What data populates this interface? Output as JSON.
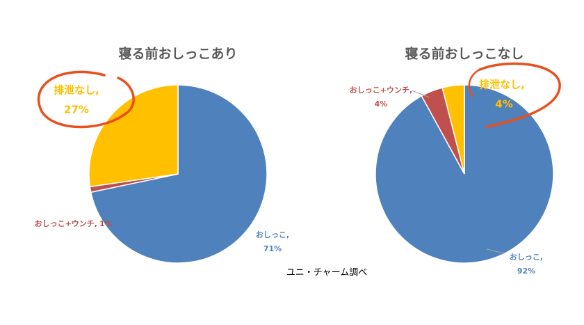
{
  "chart_data": [
    {
      "type": "pie",
      "title": "寝る前おしっこあり",
      "categories": [
        "おしっこ,",
        "おしっこ+ウンチ,",
        "排泄なし,"
      ],
      "values": [
        71,
        1,
        27
      ],
      "value_labels": [
        "71%",
        "1%",
        "27%"
      ],
      "colors": [
        "#4f81bd",
        "#c0504d",
        "#ffc000"
      ]
    },
    {
      "type": "pie",
      "title": "寝る前おしっこなし",
      "categories": [
        "おしっこ,",
        "おしっこ+ウンチ,",
        "排泄なし,"
      ],
      "values": [
        92,
        4,
        4
      ],
      "value_labels": [
        "92%",
        "4%",
        "4%"
      ],
      "colors": [
        "#4f81bd",
        "#c0504d",
        "#ffc000"
      ]
    }
  ],
  "source": "ユニ・チャーム調べ"
}
